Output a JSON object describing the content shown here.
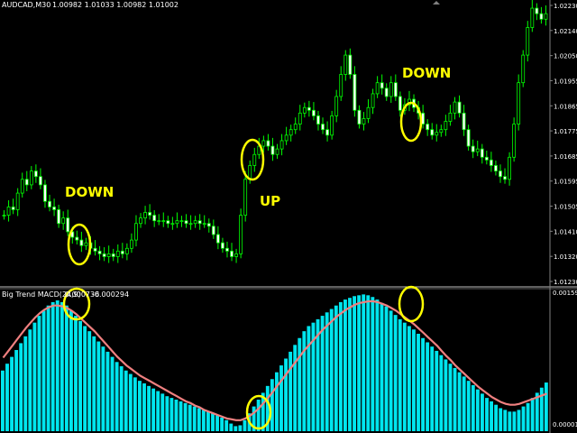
{
  "window": {
    "symbol_label": "AUDCAD,M30",
    "ohlc_readout": "1.00982 1.01033 1.00982 1.01002"
  },
  "price_axis": {
    "ticks": [
      "1.02230",
      "1.02140",
      "1.02050",
      "1.01955",
      "1.01865",
      "1.01775",
      "1.01685",
      "1.01595",
      "1.01505",
      "1.01410",
      "1.01320",
      "1.01230"
    ]
  },
  "indicator": {
    "name_label": "Big Trend MACD(24,9)",
    "value1": "0.000736",
    "value2": "-0.000294",
    "axis_top": "0.001594",
    "axis_bottom": "0.000012"
  },
  "annotations": {
    "down_left": "DOWN",
    "up_mid": "UP",
    "down_right": "DOWN"
  },
  "colors": {
    "background": "#000000",
    "candle": "#00ff00",
    "histogram": "#00e5ee",
    "signal_line": "#f08080",
    "annotation": "#ffff00",
    "separator": "#c0c0c0"
  },
  "chart_data": [
    {
      "type": "line",
      "description_series": "close",
      "x": [
        0,
        1,
        2,
        3,
        4,
        5,
        6,
        7,
        8,
        9,
        10,
        11,
        12,
        13,
        14,
        15,
        16,
        17,
        18,
        19,
        20,
        21,
        22,
        23,
        24,
        25,
        26,
        27,
        28,
        29,
        30,
        31,
        32,
        33,
        34,
        35,
        36,
        37,
        38,
        39,
        40,
        41,
        42,
        43,
        44,
        45,
        46,
        47,
        48,
        49,
        50,
        51,
        52,
        53,
        54,
        55,
        56,
        57,
        58,
        59,
        60,
        61,
        62,
        63,
        64,
        65,
        66,
        67,
        68,
        69,
        70,
        71,
        72,
        73,
        74,
        75,
        76,
        77,
        78,
        79,
        80,
        81,
        82,
        83,
        84,
        85,
        86,
        87,
        88,
        89,
        90,
        91,
        92,
        93,
        94,
        95,
        96,
        97,
        98,
        99,
        100,
        101,
        102,
        103,
        104,
        105,
        106,
        107,
        108,
        109,
        110,
        111,
        112,
        113,
        114,
        115,
        116,
        117,
        118,
        119
      ],
      "y": [
        1.0147,
        1.015,
        1.0149,
        1.0155,
        1.016,
        1.0158,
        1.0163,
        1.0161,
        1.0158,
        1.0152,
        1.015,
        1.0149,
        1.0144,
        1.0146,
        1.0141,
        1.0139,
        1.0138,
        1.0136,
        1.0137,
        1.0135,
        1.0134,
        1.0133,
        1.0132,
        1.0133,
        1.0132,
        1.0134,
        1.0133,
        1.0135,
        1.0138,
        1.0144,
        1.0146,
        1.0148,
        1.0147,
        1.0145,
        1.0145,
        1.0145,
        1.0144,
        1.0144,
        1.0145,
        1.0145,
        1.0144,
        1.0144,
        1.0145,
        1.0144,
        1.0144,
        1.0143,
        1.014,
        1.0137,
        1.0135,
        1.0134,
        1.0132,
        1.0133,
        1.0147,
        1.016,
        1.0165,
        1.0169,
        1.0172,
        1.0174,
        1.0172,
        1.0169,
        1.0171,
        1.0174,
        1.0176,
        1.0178,
        1.018,
        1.0184,
        1.0186,
        1.0185,
        1.0183,
        1.018,
        1.0178,
        1.0176,
        1.0183,
        1.019,
        1.0198,
        1.0205,
        1.0198,
        1.0185,
        1.018,
        1.0182,
        1.0186,
        1.0191,
        1.0195,
        1.0193,
        1.019,
        1.0195,
        1.019,
        1.0185,
        1.0187,
        1.0189,
        1.0186,
        1.0184,
        1.018,
        1.0178,
        1.0176,
        1.0177,
        1.0178,
        1.0181,
        1.0184,
        1.0188,
        1.0184,
        1.0178,
        1.0172,
        1.017,
        1.0171,
        1.0168,
        1.0167,
        1.0165,
        1.0163,
        1.0161,
        1.016,
        1.0168,
        1.018,
        1.0195,
        1.0205,
        1.0215,
        1.0222,
        1.022,
        1.0218,
        1.022
      ],
      "ylim": [
        1.0123,
        1.0223
      ]
    },
    {
      "type": "bar",
      "description_series": "histogram",
      "values": [
        0.0007,
        0.00078,
        0.00086,
        0.00094,
        0.00102,
        0.0011,
        0.00118,
        0.00126,
        0.00134,
        0.0014,
        0.00146,
        0.0015,
        0.00152,
        0.0015,
        0.00146,
        0.0014,
        0.00134,
        0.00128,
        0.00122,
        0.00116,
        0.0011,
        0.00104,
        0.00098,
        0.00092,
        0.00086,
        0.0008,
        0.00075,
        0.0007,
        0.00066,
        0.00062,
        0.00058,
        0.00055,
        0.00052,
        0.00049,
        0.00046,
        0.00043,
        0.0004,
        0.00038,
        0.00036,
        0.00034,
        0.00032,
        0.0003,
        0.00028,
        0.00026,
        0.00024,
        0.00022,
        0.0002,
        0.00018,
        0.00015,
        0.00012,
        8e-05,
        5e-05,
        6e-05,
        0.00012,
        0.0002,
        0.00028,
        0.00036,
        0.00044,
        0.00052,
        0.0006,
        0.00068,
        0.00076,
        0.00084,
        0.00092,
        0.001,
        0.00108,
        0.00116,
        0.00122,
        0.00126,
        0.0013,
        0.00134,
        0.00138,
        0.00142,
        0.00146,
        0.0015,
        0.00153,
        0.00155,
        0.00157,
        0.00158,
        0.00159,
        0.00158,
        0.00156,
        0.00153,
        0.00149,
        0.00145,
        0.0014,
        0.00135,
        0.0013,
        0.00126,
        0.00122,
        0.00118,
        0.00113,
        0.00108,
        0.00103,
        0.00098,
        0.00093,
        0.00088,
        0.00083,
        0.00078,
        0.00073,
        0.00068,
        0.00063,
        0.00058,
        0.00053,
        0.00048,
        0.00043,
        0.00038,
        0.00034,
        0.0003,
        0.00026,
        0.00024,
        0.00022,
        0.00022,
        0.00024,
        0.00028,
        0.00032,
        0.00038,
        0.00044,
        0.0005,
        0.00056
      ],
      "signal": [
        0.00085,
        0.00092,
        0.00099,
        0.00106,
        0.00113,
        0.0012,
        0.00126,
        0.00132,
        0.00137,
        0.00141,
        0.00144,
        0.00146,
        0.00146,
        0.00145,
        0.00143,
        0.0014,
        0.00136,
        0.00131,
        0.00126,
        0.00121,
        0.00116,
        0.0011,
        0.00104,
        0.00098,
        0.00092,
        0.00086,
        0.00081,
        0.00076,
        0.00072,
        0.00068,
        0.00064,
        0.00061,
        0.00058,
        0.00055,
        0.00052,
        0.00049,
        0.00046,
        0.00043,
        0.0004,
        0.00037,
        0.00034,
        0.00032,
        0.00029,
        0.00027,
        0.00024,
        0.00022,
        0.0002,
        0.00018,
        0.00016,
        0.00014,
        0.00013,
        0.00012,
        0.00012,
        0.00014,
        0.00017,
        0.00021,
        0.00026,
        0.00032,
        0.00038,
        0.00045,
        0.00052,
        0.00059,
        0.00066,
        0.00073,
        0.0008,
        0.00087,
        0.00094,
        0.001,
        0.00106,
        0.00112,
        0.00118,
        0.00123,
        0.00128,
        0.00133,
        0.00137,
        0.00141,
        0.00144,
        0.00147,
        0.00149,
        0.0015,
        0.00151,
        0.00151,
        0.0015,
        0.00148,
        0.00146,
        0.00143,
        0.0014,
        0.00136,
        0.00132,
        0.00128,
        0.00124,
        0.00119,
        0.00114,
        0.00109,
        0.00104,
        0.00099,
        0.00093,
        0.00087,
        0.00082,
        0.00076,
        0.00071,
        0.00066,
        0.00061,
        0.00056,
        0.00051,
        0.00047,
        0.00043,
        0.00039,
        0.00036,
        0.00033,
        0.00031,
        0.0003,
        0.0003,
        0.00031,
        0.00033,
        0.00035,
        0.00037,
        0.00039,
        0.00041,
        0.00043
      ],
      "ylim": [
        1.2e-05,
        0.001594
      ]
    }
  ]
}
